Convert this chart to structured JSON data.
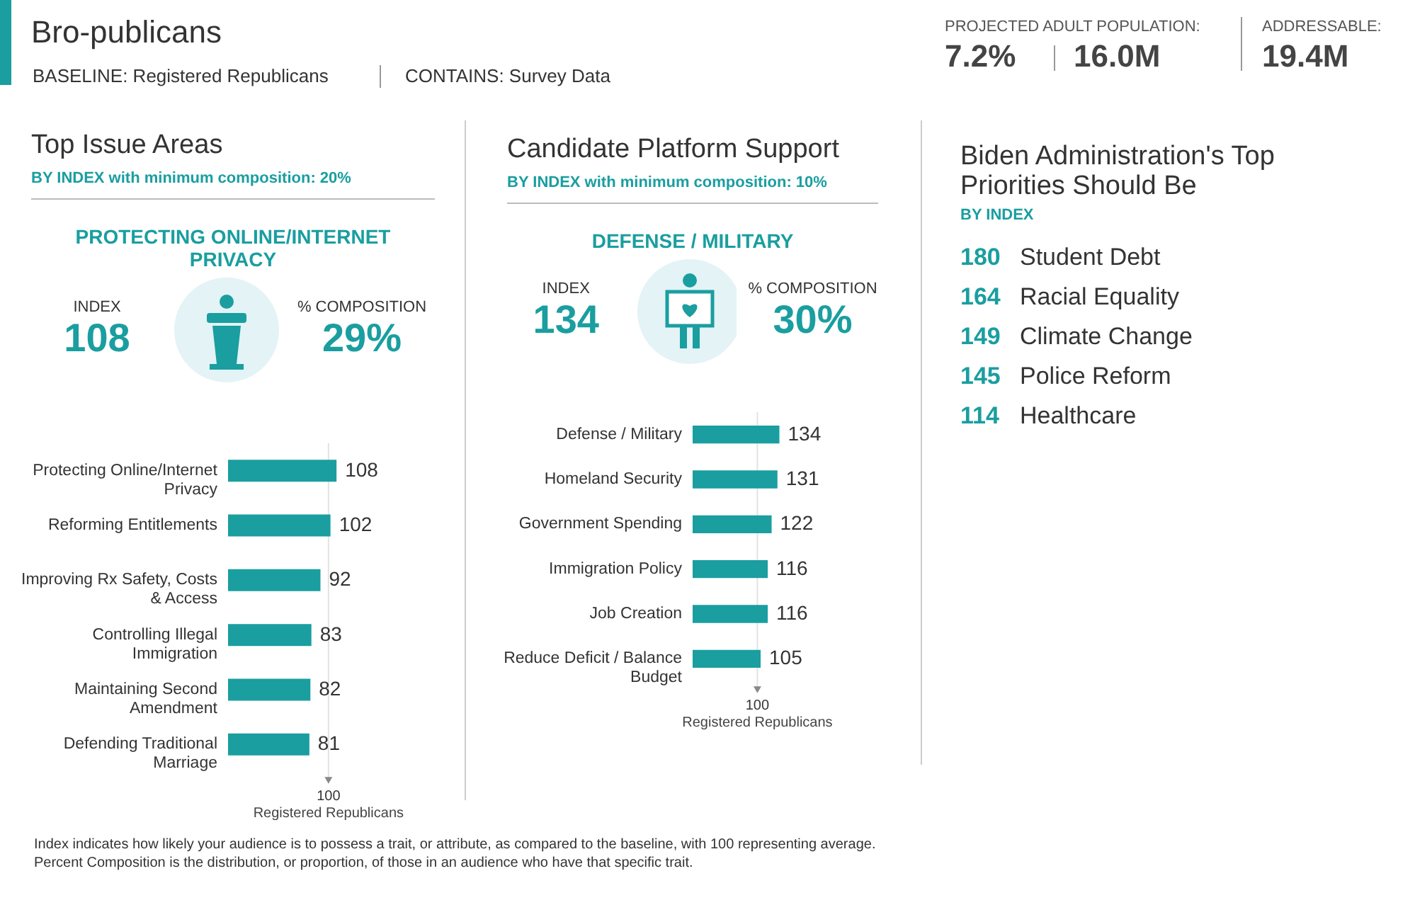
{
  "chart_data": [
    {
      "type": "other",
      "title": "Bro-publicans",
      "annotations": [
        "BASELINE: Registered Republicans",
        "CONTAINS: Survey Data",
        "PROJECTED ADULT POPULATION:",
        "7.2%",
        "16.0M",
        "ADDRESSABLE:",
        "19.4M"
      ]
    },
    {
      "type": "bar",
      "title": "Top Issue Areas",
      "subtitle": "BY INDEX with minimum composition: 20%",
      "orientation": "horizontal",
      "tick_labels": "y",
      "data_labels": true,
      "color": "#1a9ea0",
      "categories": [
        "Protecting Online/Internet Privacy",
        "Reforming Entitlements",
        "Improving Rx Safety, Costs & Access",
        "Controlling Illegal Immigration",
        "Maintaining Second Amendment",
        "Defending Traditional Marriage"
      ],
      "values": [
        108,
        102,
        92,
        83,
        82,
        81
      ],
      "ref_lines": [
        {
          "axis": "x",
          "value": 100,
          "label": "Registered Republicans",
          "color": "#e2e2e2"
        }
      ],
      "annotations": [
        "PROTECTING ONLINE/INTERNET PRIVACY",
        "INDEX",
        "108",
        "% COMPOSITION",
        "29%",
        "100"
      ]
    },
    {
      "type": "bar",
      "title": "Candidate Platform Support",
      "subtitle": "BY INDEX with minimum composition: 10%",
      "orientation": "horizontal",
      "tick_labels": "y",
      "data_labels": true,
      "color": "#1a9ea0",
      "categories": [
        "Defense / Military",
        "Homeland Security",
        "Government Spending",
        "Immigration Policy",
        "Job Creation",
        "Reduce Deficit / Balance Budget"
      ],
      "values": [
        134,
        131,
        122,
        116,
        116,
        105
      ],
      "ref_lines": [
        {
          "axis": "x",
          "value": 100,
          "label": "Registered Republicans",
          "color": "#e2e2e2"
        }
      ],
      "annotations": [
        "DEFENSE / MILITARY",
        "INDEX",
        "134",
        "% COMPOSITION",
        "30%",
        "100"
      ]
    },
    {
      "type": "other",
      "title": "Biden Administration's Top Priorities Should Be",
      "subtitle": "BY INDEX",
      "color": "#1a9ea0",
      "data_labels": true,
      "categories": [
        "Student Debt",
        "Racial Equality",
        "Climate Change",
        "Police Reform",
        "Healthcare"
      ],
      "values": [
        180,
        164,
        149,
        145,
        114
      ]
    },
    {
      "type": "other",
      "annotations": [
        "Index indicates how likely your audience is to possess a trait, or attribute, as compared to the baseline, with 100 representing average.",
        "Percent Composition is the distribution, or proportion, of those in an audience who have that specific trait."
      ]
    }
  ]
}
